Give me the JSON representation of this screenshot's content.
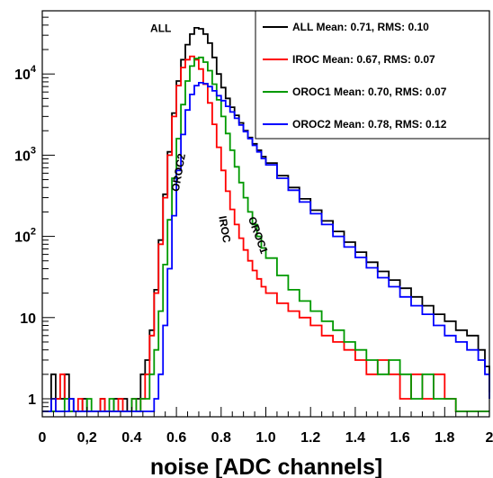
{
  "chart_data": {
    "type": "line",
    "xlabel": "noise [ADC channels]",
    "ylabel": "",
    "log_y": true,
    "xlim": [
      0,
      2
    ],
    "ylim": [
      0.6,
      60000
    ],
    "x_ticks": [
      {
        "v": 0,
        "label": "0"
      },
      {
        "v": 0.2,
        "label": "0,2"
      },
      {
        "v": 0.4,
        "label": "0.4"
      },
      {
        "v": 0.6,
        "label": "0.6"
      },
      {
        "v": 0.8,
        "label": "0.8"
      },
      {
        "v": 1.0,
        "label": "1.0"
      },
      {
        "v": 1.2,
        "label": "1.2"
      },
      {
        "v": 1.4,
        "label": "1.4"
      },
      {
        "v": 1.6,
        "label": "1.6"
      },
      {
        "v": 1.8,
        "label": "1.8"
      },
      {
        "v": 2.0,
        "label": "2"
      }
    ],
    "y_ticks": [
      {
        "v": 1,
        "label": "1"
      },
      {
        "v": 10,
        "label": "10"
      },
      {
        "v": 100,
        "label": "10",
        "sup": "2"
      },
      {
        "v": 1000,
        "label": "10",
        "sup": "3"
      },
      {
        "v": 10000,
        "label": "10",
        "sup": "4"
      }
    ],
    "legend_position": "top-right",
    "annotations": [
      {
        "text": "ALL",
        "x": 0.53,
        "y": 33000,
        "rotate": 0
      },
      {
        "text": "OROC2",
        "x": 0.625,
        "y": 600,
        "rotate": -80
      },
      {
        "text": "IROC",
        "x": 0.8,
        "y": 120,
        "rotate": 80
      },
      {
        "text": "OROC1",
        "x": 0.95,
        "y": 100,
        "rotate": 70
      }
    ],
    "series": [
      {
        "name": "ALL  Mean: 0.71, RMS: 0.10",
        "color": "#000000",
        "points": [
          [
            0.0,
            0.7
          ],
          [
            0.04,
            2
          ],
          [
            0.06,
            1
          ],
          [
            0.08,
            1
          ],
          [
            0.1,
            2
          ],
          [
            0.12,
            1
          ],
          [
            0.14,
            0.7
          ],
          [
            0.18,
            1
          ],
          [
            0.2,
            0.7
          ],
          [
            0.26,
            1
          ],
          [
            0.28,
            0.7
          ],
          [
            0.32,
            1
          ],
          [
            0.36,
            1
          ],
          [
            0.38,
            0.7
          ],
          [
            0.4,
            1
          ],
          [
            0.42,
            1
          ],
          [
            0.44,
            2
          ],
          [
            0.46,
            3
          ],
          [
            0.48,
            7
          ],
          [
            0.5,
            22
          ],
          [
            0.52,
            90
          ],
          [
            0.54,
            330
          ],
          [
            0.56,
            1100
          ],
          [
            0.58,
            3300
          ],
          [
            0.6,
            8200
          ],
          [
            0.62,
            15000
          ],
          [
            0.64,
            23000
          ],
          [
            0.66,
            31000
          ],
          [
            0.68,
            37000
          ],
          [
            0.7,
            36000
          ],
          [
            0.72,
            31000
          ],
          [
            0.74,
            24000
          ],
          [
            0.76,
            16000
          ],
          [
            0.78,
            10000
          ],
          [
            0.8,
            6800
          ],
          [
            0.82,
            5000
          ],
          [
            0.84,
            3900
          ],
          [
            0.86,
            3100
          ],
          [
            0.88,
            2500
          ],
          [
            0.9,
            2000
          ],
          [
            0.92,
            1650
          ],
          [
            0.94,
            1380
          ],
          [
            0.96,
            1150
          ],
          [
            0.98,
            960
          ],
          [
            1.0,
            800
          ],
          [
            1.05,
            560
          ],
          [
            1.1,
            400
          ],
          [
            1.15,
            290
          ],
          [
            1.2,
            210
          ],
          [
            1.25,
            155
          ],
          [
            1.3,
            115
          ],
          [
            1.35,
            85
          ],
          [
            1.4,
            64
          ],
          [
            1.45,
            48
          ],
          [
            1.5,
            37
          ],
          [
            1.55,
            29
          ],
          [
            1.6,
            23
          ],
          [
            1.65,
            18
          ],
          [
            1.7,
            14
          ],
          [
            1.75,
            11
          ],
          [
            1.8,
            9
          ],
          [
            1.85,
            7
          ],
          [
            1.9,
            6
          ],
          [
            1.95,
            4
          ],
          [
            1.98,
            2.5
          ],
          [
            2.0,
            1.2
          ]
        ]
      },
      {
        "name": "IROC  Mean: 0.67, RMS: 0.07",
        "color": "#ff0000",
        "points": [
          [
            0.0,
            0.7
          ],
          [
            0.06,
            1
          ],
          [
            0.08,
            2
          ],
          [
            0.1,
            1
          ],
          [
            0.12,
            0.7
          ],
          [
            0.16,
            1
          ],
          [
            0.18,
            0.7
          ],
          [
            0.26,
            1
          ],
          [
            0.28,
            0.7
          ],
          [
            0.34,
            1
          ],
          [
            0.36,
            0.7
          ],
          [
            0.4,
            1
          ],
          [
            0.42,
            0.7
          ],
          [
            0.44,
            1
          ],
          [
            0.46,
            2
          ],
          [
            0.48,
            6
          ],
          [
            0.5,
            20
          ],
          [
            0.52,
            80
          ],
          [
            0.54,
            300
          ],
          [
            0.56,
            1000
          ],
          [
            0.58,
            3000
          ],
          [
            0.6,
            7200
          ],
          [
            0.62,
            12000
          ],
          [
            0.64,
            15000
          ],
          [
            0.66,
            16500
          ],
          [
            0.68,
            15000
          ],
          [
            0.7,
            11500
          ],
          [
            0.72,
            7500
          ],
          [
            0.74,
            4400
          ],
          [
            0.76,
            2400
          ],
          [
            0.78,
            1250
          ],
          [
            0.8,
            650
          ],
          [
            0.82,
            360
          ],
          [
            0.84,
            215
          ],
          [
            0.86,
            140
          ],
          [
            0.88,
            95
          ],
          [
            0.9,
            68
          ],
          [
            0.92,
            50
          ],
          [
            0.94,
            38
          ],
          [
            0.96,
            30
          ],
          [
            0.98,
            24
          ],
          [
            1.0,
            20
          ],
          [
            1.05,
            15
          ],
          [
            1.1,
            12
          ],
          [
            1.15,
            10
          ],
          [
            1.2,
            8
          ],
          [
            1.25,
            6
          ],
          [
            1.3,
            5
          ],
          [
            1.35,
            4
          ],
          [
            1.4,
            3
          ],
          [
            1.45,
            2
          ],
          [
            1.5,
            3
          ],
          [
            1.55,
            2
          ],
          [
            1.6,
            1
          ],
          [
            1.65,
            2
          ],
          [
            1.7,
            1
          ],
          [
            1.75,
            2
          ],
          [
            1.8,
            1
          ],
          [
            1.85,
            0.7
          ]
        ]
      },
      {
        "name": "OROC1 Mean: 0.70, RMS: 0.07",
        "color": "#009900",
        "points": [
          [
            0.0,
            0.7
          ],
          [
            0.1,
            1
          ],
          [
            0.12,
            0.7
          ],
          [
            0.2,
            1
          ],
          [
            0.22,
            0.7
          ],
          [
            0.3,
            1
          ],
          [
            0.32,
            0.7
          ],
          [
            0.4,
            1
          ],
          [
            0.42,
            0.7
          ],
          [
            0.44,
            1
          ],
          [
            0.46,
            1
          ],
          [
            0.48,
            2
          ],
          [
            0.5,
            4
          ],
          [
            0.52,
            12
          ],
          [
            0.54,
            45
          ],
          [
            0.56,
            160
          ],
          [
            0.58,
            520
          ],
          [
            0.6,
            1600
          ],
          [
            0.62,
            4200
          ],
          [
            0.64,
            8200
          ],
          [
            0.66,
            12500
          ],
          [
            0.68,
            15500
          ],
          [
            0.7,
            16000
          ],
          [
            0.72,
            14000
          ],
          [
            0.74,
            11000
          ],
          [
            0.76,
            7500
          ],
          [
            0.78,
            4800
          ],
          [
            0.8,
            3000
          ],
          [
            0.82,
            1850
          ],
          [
            0.84,
            1150
          ],
          [
            0.86,
            720
          ],
          [
            0.88,
            460
          ],
          [
            0.9,
            300
          ],
          [
            0.92,
            200
          ],
          [
            0.94,
            140
          ],
          [
            0.96,
            100
          ],
          [
            0.98,
            72
          ],
          [
            1.0,
            54
          ],
          [
            1.05,
            33
          ],
          [
            1.1,
            22
          ],
          [
            1.15,
            16
          ],
          [
            1.2,
            12
          ],
          [
            1.25,
            9
          ],
          [
            1.3,
            7
          ],
          [
            1.35,
            5
          ],
          [
            1.4,
            4
          ],
          [
            1.45,
            3
          ],
          [
            1.5,
            2
          ],
          [
            1.55,
            3
          ],
          [
            1.6,
            2
          ],
          [
            1.65,
            1
          ],
          [
            1.7,
            2
          ],
          [
            1.75,
            1
          ],
          [
            1.8,
            1
          ],
          [
            1.85,
            0.7
          ]
        ]
      },
      {
        "name": "OROC2 Mean: 0.78, RMS: 0.12",
        "color": "#0000ff",
        "points": [
          [
            0.0,
            0.7
          ],
          [
            0.04,
            1
          ],
          [
            0.06,
            0.7
          ],
          [
            0.12,
            1
          ],
          [
            0.14,
            0.7
          ],
          [
            0.48,
            0.7
          ],
          [
            0.5,
            1
          ],
          [
            0.52,
            2
          ],
          [
            0.54,
            8
          ],
          [
            0.56,
            40
          ],
          [
            0.58,
            180
          ],
          [
            0.6,
            650
          ],
          [
            0.62,
            1800
          ],
          [
            0.64,
            3600
          ],
          [
            0.66,
            5600
          ],
          [
            0.68,
            7200
          ],
          [
            0.7,
            7800
          ],
          [
            0.72,
            7600
          ],
          [
            0.74,
            7000
          ],
          [
            0.76,
            6200
          ],
          [
            0.78,
            5400
          ],
          [
            0.8,
            4700
          ],
          [
            0.82,
            4000
          ],
          [
            0.84,
            3400
          ],
          [
            0.86,
            2850
          ],
          [
            0.88,
            2350
          ],
          [
            0.9,
            1950
          ],
          [
            0.92,
            1600
          ],
          [
            0.94,
            1320
          ],
          [
            0.96,
            1100
          ],
          [
            0.98,
            910
          ],
          [
            1.0,
            760
          ],
          [
            1.05,
            520
          ],
          [
            1.1,
            370
          ],
          [
            1.15,
            265
          ],
          [
            1.2,
            190
          ],
          [
            1.25,
            140
          ],
          [
            1.3,
            100
          ],
          [
            1.35,
            74
          ],
          [
            1.4,
            55
          ],
          [
            1.45,
            41
          ],
          [
            1.5,
            31
          ],
          [
            1.55,
            24
          ],
          [
            1.6,
            18
          ],
          [
            1.65,
            14
          ],
          [
            1.7,
            11
          ],
          [
            1.75,
            8
          ],
          [
            1.8,
            6
          ],
          [
            1.85,
            5
          ],
          [
            1.9,
            4
          ],
          [
            1.95,
            3
          ],
          [
            1.98,
            2
          ],
          [
            2.0,
            1
          ]
        ]
      }
    ]
  }
}
